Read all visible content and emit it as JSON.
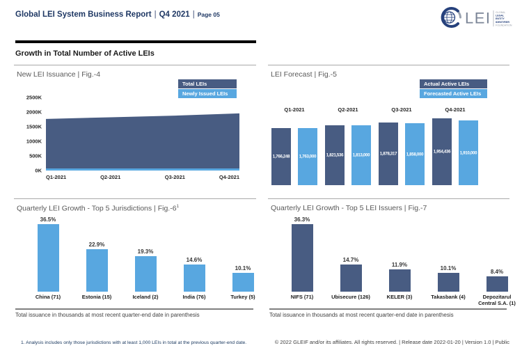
{
  "header": {
    "title": "Global LEI System Business Report",
    "sep": "|",
    "period": "Q4 2021",
    "page": "Page 05",
    "logo": {
      "wordmark": "LEI",
      "tagline": [
        "GLOBAL",
        "LEGAL",
        "ENTITY",
        "IDENTIFIER",
        "FOUNDATION"
      ]
    }
  },
  "section_title": "Growth in Total Number of Active LEIs",
  "colors": {
    "dark_blue": "#485C82",
    "light_blue": "#58A7E0",
    "navy_text": "#1F3864"
  },
  "chart_data": [
    {
      "id": "fig4",
      "type": "area",
      "title": "New LEI Issuance | Fig.-4",
      "categories": [
        "Q1-2021",
        "Q2-2021",
        "Q3-2021",
        "Q4-2021"
      ],
      "series": [
        {
          "name": "Total LEIs",
          "color": "#485C82",
          "values": [
            1766248,
            1821536,
            1878317,
            1954436
          ]
        },
        {
          "name": "Newly Issued LEIs",
          "color": "#58A7E0",
          "values": [
            55000,
            56000,
            57000,
            62000
          ]
        }
      ],
      "ylim": [
        0,
        2500000
      ],
      "yticks": [
        "2500K",
        "2000K",
        "1500K",
        "1000K",
        "500K",
        "0K"
      ],
      "legend_position": "top-right",
      "grid": false
    },
    {
      "id": "fig5",
      "type": "bar",
      "title": "LEI Forecast | Fig.-5",
      "categories": [
        "Q1-2021",
        "Q2-2021",
        "Q3-2021",
        "Q4-2021"
      ],
      "series": [
        {
          "name": "Actual Active LEIs",
          "color": "#485C82",
          "values": [
            1766248,
            1821536,
            1878317,
            1954436
          ],
          "labels": [
            "1,766,248",
            "1,821,536",
            "1,878,317",
            "1,954,436"
          ]
        },
        {
          "name": "Forecasted Active LEIs",
          "color": "#58A7E0",
          "values": [
            1763000,
            1813000,
            1858000,
            1910000
          ],
          "labels": [
            "1,763,000",
            "1,813,000",
            "1,858,000",
            "1,910,000"
          ]
        }
      ],
      "legend_position": "top-right",
      "axis_truncated": true
    },
    {
      "id": "fig6",
      "type": "bar",
      "title": "Quarterly LEI Growth - Top 5 Jurisdictions | Fig.-6",
      "title_superscript": "1",
      "categories": [
        "China (71)",
        "Estonia (15)",
        "Iceland (2)",
        "India (76)",
        "Turkey (5)"
      ],
      "values": [
        36.5,
        22.9,
        19.3,
        14.6,
        10.1
      ],
      "value_labels": [
        "36.5%",
        "22.9%",
        "19.3%",
        "14.6%",
        "10.1%"
      ],
      "bar_color": "#58A7E0",
      "caption": "Total issuance in thousands at most recent quarter-end date in parenthesis"
    },
    {
      "id": "fig7",
      "type": "bar",
      "title": "Quarterly LEI Growth - Top 5 LEI Issuers | Fig.-7",
      "categories": [
        "NIFS (71)",
        "Ubisecure (126)",
        "KELER (3)",
        "Takasbank (4)",
        "Depozitarul Central S.A. (1)"
      ],
      "values": [
        36.3,
        14.7,
        11.9,
        10.1,
        8.4
      ],
      "value_labels": [
        "36.3%",
        "14.7%",
        "11.9%",
        "10.1%",
        "8.4%"
      ],
      "bar_color": "#485C82",
      "caption": "Total issuance in thousands at most recent quarter-end date in parenthesis"
    }
  ],
  "footnote": "1. Analysis includes only those jurisdictions with at least 1,000 LEIs in total at the previous quarter-end date.",
  "footer": "© 2022 GLEIF and/or its affiliates. All rights reserved. | Release date 2022-01-20 | Version 1.0 | Public"
}
